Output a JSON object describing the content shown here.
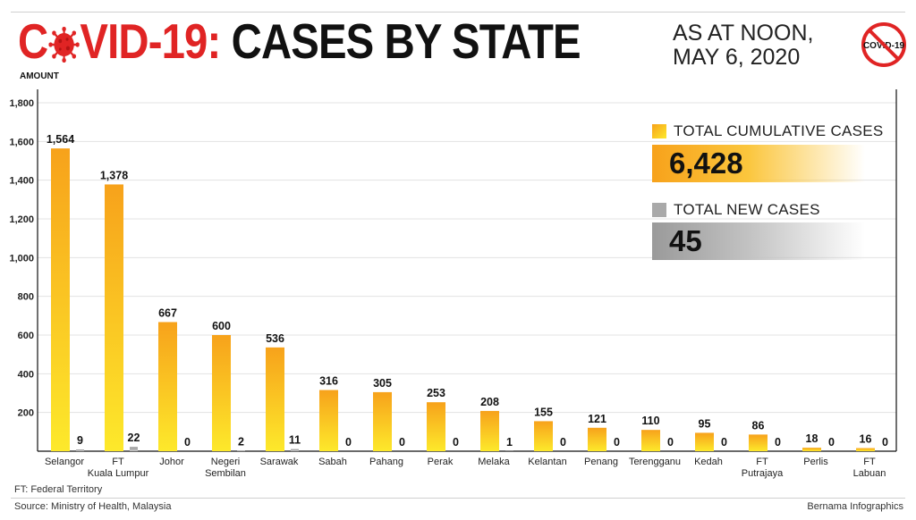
{
  "header": {
    "title_part1": "C",
    "title_part2": "VID-19:",
    "title_part3": "CASES BY STATE",
    "date_line1": "AS AT NOON,",
    "date_line2": "MAY 6, 2020",
    "badge_text": "COVID-19"
  },
  "legend": {
    "cumulative_label": "TOTAL CUMULATIVE CASES",
    "cumulative_value": "6,428",
    "new_label": "TOTAL NEW CASES",
    "new_value": "45"
  },
  "footer": {
    "note": "FT: Federal Territory",
    "source": "Source: Ministry of Health, Malaysia",
    "credit": "Bernama Infographics"
  },
  "colors": {
    "accent_red": "#e02424",
    "bar_top": "#f7a21b",
    "bar_bottom": "#fde92b",
    "new_bar": "#a9a9a9"
  },
  "chart_data": {
    "type": "bar",
    "ylabel": "AMOUNT",
    "ylim": [
      0,
      1800
    ],
    "yticks": [
      "1,800",
      "1,600",
      "1,400",
      "1,200",
      "1,000",
      "800",
      "600",
      "400",
      "200"
    ],
    "ytick_values": [
      1800,
      1600,
      1400,
      1200,
      1000,
      800,
      600,
      400,
      200
    ],
    "grid": true,
    "categories": [
      [
        "Selangor"
      ],
      [
        "FT",
        "Kuala Lumpur"
      ],
      [
        "Johor"
      ],
      [
        "Negeri",
        "Sembilan"
      ],
      [
        "Sarawak"
      ],
      [
        "Sabah"
      ],
      [
        "Pahang"
      ],
      [
        "Perak"
      ],
      [
        "Melaka"
      ],
      [
        "Kelantan"
      ],
      [
        "Penang"
      ],
      [
        "Terengganu"
      ],
      [
        "Kedah"
      ],
      [
        "FT",
        "Putrajaya"
      ],
      [
        "Perlis"
      ],
      [
        "FT",
        "Labuan"
      ]
    ],
    "series": [
      {
        "name": "TOTAL CUMULATIVE CASES",
        "values": [
          1564,
          1378,
          667,
          600,
          536,
          316,
          305,
          253,
          208,
          155,
          121,
          110,
          95,
          86,
          18,
          16
        ]
      },
      {
        "name": "TOTAL NEW CASES",
        "values": [
          9,
          22,
          0,
          2,
          11,
          0,
          0,
          0,
          1,
          0,
          0,
          0,
          0,
          0,
          0,
          0
        ]
      }
    ],
    "value_labels": [
      [
        "1,564",
        "1,378",
        "667",
        "600",
        "536",
        "316",
        "305",
        "253",
        "208",
        "155",
        "121",
        "110",
        "95",
        "86",
        "18",
        "16"
      ],
      [
        "9",
        "22",
        "0",
        "2",
        "11",
        "0",
        "0",
        "0",
        "1",
        "0",
        "0",
        "0",
        "0",
        "0",
        "0",
        "0"
      ]
    ]
  }
}
